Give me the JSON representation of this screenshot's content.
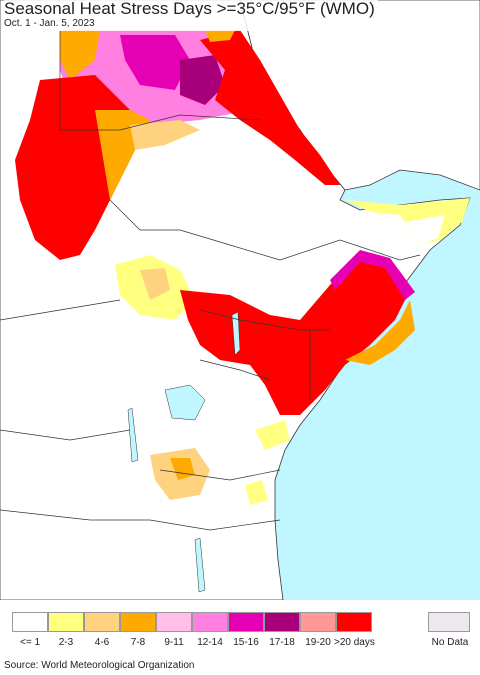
{
  "title": "Seasonal Heat Stress Days >=35°C/95°F (WMO)",
  "subtitle": "Oct. 1 - Jan. 5, 2023",
  "source": "Source: World Meteorological Organization",
  "legend": [
    {
      "label": "<= 1",
      "color": "#ffffff"
    },
    {
      "label": "2-3",
      "color": "#ffff80"
    },
    {
      "label": "4-6",
      "color": "#ffd27f"
    },
    {
      "label": "7-8",
      "color": "#ffaa00"
    },
    {
      "label": "9-11",
      "color": "#ffbfe8"
    },
    {
      "label": "12-14",
      "color": "#ff80e0"
    },
    {
      "label": "15-16",
      "color": "#e600b4"
    },
    {
      "label": "17-18",
      "color": "#a8007a"
    },
    {
      "label": "19-20",
      "color": "#ff9999"
    },
    {
      "label": ">20 days",
      "color": "#ff0000"
    }
  ],
  "no_data": {
    "label": "No Data",
    "color": "#ece8ee"
  },
  "colors": {
    "sea": "#bff6ff",
    "other_land": "#ffffff",
    "border": "#333333"
  }
}
